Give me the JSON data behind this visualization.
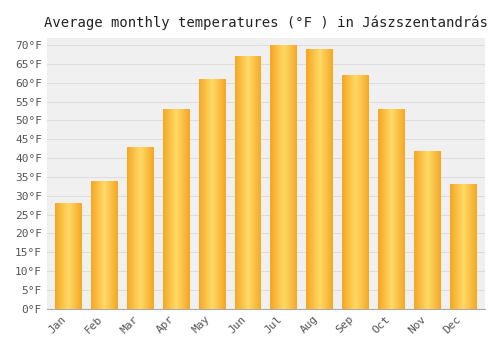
{
  "title": "Average monthly temperatures (°F ) in Jászszentandrás",
  "months": [
    "Jan",
    "Feb",
    "Mar",
    "Apr",
    "May",
    "Jun",
    "Jul",
    "Aug",
    "Sep",
    "Oct",
    "Nov",
    "Dec"
  ],
  "values": [
    28,
    34,
    43,
    53,
    61,
    67,
    70,
    69,
    62,
    53,
    42,
    33
  ],
  "bar_color_dark": "#F5A623",
  "bar_color_light": "#FFD966",
  "ylim": [
    0,
    72
  ],
  "yticks": [
    0,
    5,
    10,
    15,
    20,
    25,
    30,
    35,
    40,
    45,
    50,
    55,
    60,
    65,
    70
  ],
  "background_color": "#ffffff",
  "plot_bg_color": "#f0f0f0",
  "grid_color": "#dddddd",
  "title_fontsize": 10,
  "tick_fontsize": 8,
  "font_family": "monospace"
}
